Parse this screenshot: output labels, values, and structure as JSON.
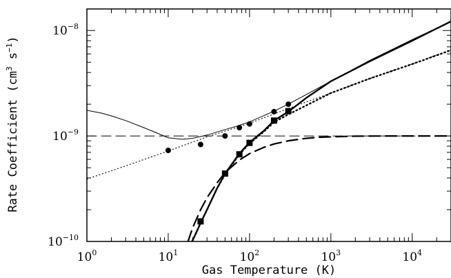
{
  "chart_data": {
    "type": "line",
    "title": "",
    "xlabel": "Gas Temperature (K)",
    "ylabel_text": "Rate Coefficient (cm",
    "ylabel_sup1": "3",
    "ylabel_mid": " s",
    "ylabel_sup2": "−1",
    "ylabel_close": ")",
    "xscale": "log",
    "yscale": "log",
    "xlim": [
      1,
      30000
    ],
    "ylim": [
      1e-10,
      1.6e-08
    ],
    "grid": false,
    "legend": "none",
    "x_ticks": [
      {
        "value": 1,
        "base": "10",
        "exp": "0"
      },
      {
        "value": 10,
        "base": "10",
        "exp": "1"
      },
      {
        "value": 100,
        "base": "10",
        "exp": "2"
      },
      {
        "value": 1000,
        "base": "10",
        "exp": "3"
      },
      {
        "value": 10000,
        "base": "10",
        "exp": "4"
      }
    ],
    "y_ticks": [
      {
        "value": 1e-10,
        "base": "10",
        "exp": "−10"
      },
      {
        "value": 1e-09,
        "base": "10",
        "exp": "−9"
      },
      {
        "value": 1e-08,
        "base": "10",
        "exp": "−8"
      }
    ],
    "series": [
      {
        "style": "thin-solid",
        "x": [
          1,
          1.5,
          2,
          3,
          5,
          7,
          10,
          15,
          20,
          30,
          50,
          70,
          100,
          200,
          300,
          1000,
          3000,
          10000,
          30000
        ],
        "y": [
          1.75e-09,
          1.65e-09,
          1.55e-09,
          1.4e-09,
          1.2e-09,
          1.08e-09,
          9.6e-10,
          9.3e-10,
          9.5e-10,
          1.02e-09,
          1.15e-09,
          1.24e-09,
          1.36e-09,
          1.72e-09,
          2e-09,
          3.3e-09,
          5.2e-09,
          8.2e-09,
          1.22e-08
        ]
      },
      {
        "style": "thin-dotted",
        "x": [
          1,
          3,
          10,
          30,
          100,
          300,
          1000,
          3000,
          10000,
          30000
        ],
        "y": [
          3.9e-10,
          5.2e-10,
          7.2e-10,
          9.8e-10,
          1.32e-09,
          1.82e-09,
          2.55e-09,
          3.5e-09,
          4.8e-09,
          6.6e-09
        ]
      },
      {
        "style": "thin-dashed",
        "x": [
          1,
          30000
        ],
        "y": [
          1e-09,
          1e-09
        ]
      },
      {
        "style": "thick-solid",
        "x": [
          19,
          22,
          25,
          30,
          40,
          50,
          75,
          100,
          150,
          200,
          300,
          500,
          1000,
          3000,
          10000,
          30000
        ],
        "y": [
          9.5e-11,
          1.2e-10,
          1.5e-10,
          2e-10,
          3.2e-10,
          4.4e-10,
          6.8e-10,
          8.7e-10,
          1.12e-09,
          1.4e-09,
          1.7e-09,
          2.3e-09,
          3.3e-09,
          5.1e-09,
          8e-09,
          1.22e-08
        ]
      },
      {
        "style": "thick-dotted",
        "x": [
          20,
          25,
          30,
          40,
          50,
          75,
          100,
          150,
          200,
          300,
          1000,
          3000,
          10000,
          30000
        ],
        "y": [
          1.02e-10,
          1.5e-10,
          2e-10,
          3.2e-10,
          4.3e-10,
          6.7e-10,
          8.5e-10,
          1.1e-09,
          1.35e-09,
          1.6e-09,
          2.55e-09,
          3.5e-09,
          4.8e-09,
          6.5e-09
        ]
      },
      {
        "style": "thick-dashed",
        "x": [
          17.5,
          20,
          25,
          30,
          40,
          50,
          75,
          100,
          150,
          200,
          300,
          500,
          700,
          1000,
          2000,
          5000,
          30000
        ],
        "y": [
          1e-10,
          1.35e-10,
          2e-10,
          2.6e-10,
          3.6e-10,
          4.5e-10,
          5.9e-10,
          6.8e-10,
          7.8e-10,
          8.4e-10,
          9e-10,
          9.5e-10,
          9.7e-10,
          9.8e-10,
          9.95e-10,
          1e-09,
          1e-09
        ]
      }
    ],
    "markers": [
      {
        "shape": "circle",
        "x": [
          10,
          25,
          50,
          75,
          100,
          200,
          300
        ],
        "y": [
          7.3e-10,
          8.3e-10,
          1e-09,
          1.2e-09,
          1.3e-09,
          1.7e-09,
          2e-09
        ]
      },
      {
        "shape": "square",
        "x": [
          25,
          50,
          75,
          100,
          200,
          300
        ],
        "y": [
          1.55e-10,
          4.4e-10,
          6.7e-10,
          8.6e-10,
          1.4e-09,
          1.72e-09
        ]
      }
    ]
  }
}
